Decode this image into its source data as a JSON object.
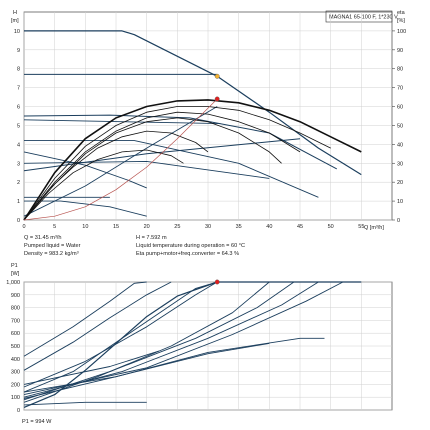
{
  "chart_data": [
    {
      "type": "line",
      "title": "MAGNA1 65-100 F, 1*230 V",
      "ylabel_top": "H",
      "ylabel_unit": "[m]",
      "y2label_top": "eta",
      "y2label_unit": "[%]",
      "xlabel": "Q [m³/h]",
      "xlim": [
        0,
        60
      ],
      "ylim": [
        0,
        11
      ],
      "y2lim": [
        0,
        110
      ],
      "x_ticks": [
        0,
        5,
        10,
        15,
        20,
        25,
        30,
        35,
        40,
        45,
        50,
        55
      ],
      "y_ticks": [
        0,
        1,
        2,
        3,
        4,
        5,
        6,
        7,
        8,
        9,
        10
      ],
      "y2_ticks": [
        0,
        10,
        20,
        30,
        40,
        50,
        60,
        70,
        80,
        90,
        100
      ],
      "grid": true,
      "series": [
        {
          "color": "#1c3f5e",
          "width": 1.2,
          "points": [
            [
              0,
              10
            ],
            [
              16,
              10
            ],
            [
              18,
              9.8
            ],
            [
              31.5,
              7.6
            ]
          ]
        },
        {
          "color": "#1c3f5e",
          "width": 1.2,
          "points": [
            [
              31.5,
              7.6
            ],
            [
              40,
              5.7
            ],
            [
              48,
              3.8
            ],
            [
              55,
              2.4
            ]
          ]
        },
        {
          "color": "#1c3f5e",
          "width": 1.0,
          "points": [
            [
              0,
              7.7
            ],
            [
              31.5,
              7.7
            ]
          ]
        },
        {
          "color": "#1c3f5e",
          "width": 1.0,
          "points": [
            [
              0,
              5.5
            ],
            [
              14,
              5.55
            ],
            [
              27,
              5.4
            ],
            [
              40,
              4.6
            ],
            [
              51,
              2.7
            ]
          ]
        },
        {
          "color": "#1c3f5e",
          "width": 1.0,
          "points": [
            [
              0,
              2.6
            ],
            [
              20,
              3.5
            ],
            [
              45,
              4.3
            ]
          ]
        },
        {
          "color": "#1c3f5e",
          "width": 0.9,
          "points": [
            [
              0,
              1.0
            ],
            [
              6,
              1.0
            ],
            [
              14,
              0.7
            ],
            [
              20,
              0.2
            ]
          ]
        },
        {
          "color": "#1c3f5e",
          "width": 0.9,
          "points": [
            [
              0,
              3.6
            ],
            [
              10,
              2.9
            ],
            [
              17,
              2.1
            ],
            [
              20,
              1.7
            ]
          ]
        },
        {
          "color": "#1c3f5e",
          "width": 0.9,
          "points": [
            [
              0,
              4.2
            ],
            [
              18,
              4.2
            ],
            [
              35,
              3.0
            ],
            [
              48,
              1.2
            ]
          ]
        },
        {
          "color": "#1c3f5e",
          "width": 0.9,
          "points": [
            [
              0,
              1.2
            ],
            [
              14,
              1.2
            ]
          ]
        },
        {
          "color": "#1c3f5e",
          "width": 0.9,
          "points": [
            [
              0,
              5.3
            ],
            [
              32,
              5.1
            ]
          ]
        },
        {
          "color": "#1c3f5e",
          "width": 0.9,
          "points": [
            [
              0,
              0.2
            ],
            [
              10,
              1.8
            ],
            [
              20,
              3.8
            ],
            [
              31.5,
              6.0
            ]
          ]
        },
        {
          "color": "#1c3f5e",
          "width": 0.9,
          "points": [
            [
              0,
              3.0
            ],
            [
              20,
              3.1
            ],
            [
              40,
              2.2
            ]
          ]
        },
        {
          "color": "#111111",
          "width": 1.6,
          "points": [
            [
              0,
              0
            ],
            [
              5,
              2.5
            ],
            [
              10,
              4.3
            ],
            [
              15,
              5.4
            ],
            [
              20,
              6.0
            ],
            [
              25,
              6.3
            ],
            [
              30,
              6.35
            ],
            [
              35,
              6.2
            ],
            [
              40,
              5.8
            ],
            [
              45,
              5.2
            ],
            [
              50,
              4.4
            ],
            [
              55,
              3.6
            ]
          ]
        },
        {
          "color": "#111111",
          "width": 0.8,
          "points": [
            [
              0,
              0
            ],
            [
              5,
              2.2
            ],
            [
              10,
              3.9
            ],
            [
              15,
              5.0
            ],
            [
              20,
              5.7
            ],
            [
              25,
              6.0
            ],
            [
              30,
              6.0
            ],
            [
              35,
              5.8
            ],
            [
              40,
              5.3
            ],
            [
              45,
              4.6
            ],
            [
              50,
              3.8
            ]
          ]
        },
        {
          "color": "#111111",
          "width": 0.8,
          "points": [
            [
              0,
              0
            ],
            [
              5,
              2.0
            ],
            [
              10,
              3.6
            ],
            [
              15,
              4.7
            ],
            [
              20,
              5.4
            ],
            [
              25,
              5.7
            ],
            [
              30,
              5.6
            ],
            [
              35,
              5.2
            ],
            [
              40,
              4.6
            ],
            [
              45,
              3.6
            ]
          ]
        },
        {
          "color": "#111111",
          "width": 0.8,
          "points": [
            [
              0,
              0
            ],
            [
              5,
              1.9
            ],
            [
              10,
              3.5
            ],
            [
              15,
              4.6
            ],
            [
              20,
              5.2
            ],
            [
              25,
              5.4
            ],
            [
              30,
              5.2
            ],
            [
              35,
              4.6
            ],
            [
              40,
              3.6
            ],
            [
              42,
              3.0
            ]
          ]
        },
        {
          "color": "#111111",
          "width": 0.8,
          "points": [
            [
              0,
              0
            ],
            [
              4,
              1.6
            ],
            [
              8,
              2.8
            ],
            [
              12,
              3.8
            ],
            [
              16,
              4.4
            ],
            [
              20,
              4.7
            ],
            [
              24,
              4.6
            ],
            [
              28,
              4.1
            ],
            [
              30,
              3.6
            ]
          ]
        },
        {
          "color": "#111111",
          "width": 0.8,
          "points": [
            [
              0,
              0
            ],
            [
              4,
              1.4
            ],
            [
              8,
              2.5
            ],
            [
              12,
              3.2
            ],
            [
              16,
              3.6
            ],
            [
              20,
              3.7
            ],
            [
              24,
              3.4
            ],
            [
              26,
              3.0
            ]
          ]
        },
        {
          "color": "#b85450",
          "width": 0.7,
          "points": [
            [
              0,
              0
            ],
            [
              5,
              0.2
            ],
            [
              10,
              0.7
            ],
            [
              15,
              1.6
            ],
            [
              20,
              2.8
            ],
            [
              25,
              4.3
            ],
            [
              31.5,
              6.4
            ]
          ]
        }
      ],
      "markers": [
        {
          "x": 31.5,
          "y": 7.6,
          "color": "#f2b233"
        },
        {
          "x": 31.5,
          "y": 6.4,
          "color": "#e02020"
        }
      ],
      "info_left": [
        "Q = 31.45 m³/h",
        "Pumped liquid = Water",
        "Density = 983.2 kg/m³"
      ],
      "info_right": [
        "H = 7.592 m",
        "Liquid temperature during operation = 60 °C",
        "Eta pump+motor+freq.converter = 64.3 %"
      ]
    },
    {
      "type": "line",
      "ylabel_top": "P1",
      "ylabel_unit": "[W]",
      "xlim": [
        0,
        60
      ],
      "ylim": [
        0,
        1000
      ],
      "y_ticks": [
        0,
        100,
        200,
        300,
        400,
        500,
        600,
        700,
        800,
        900,
        "1,000"
      ],
      "grid": true,
      "series": [
        {
          "color": "#1c3f5e",
          "width": 1.2,
          "points": [
            [
              0,
              20
            ],
            [
              5,
              120
            ],
            [
              10,
              310
            ],
            [
              15,
              520
            ],
            [
              20,
              730
            ],
            [
              25,
              890
            ],
            [
              31.5,
              1000
            ],
            [
              55,
              1000
            ]
          ]
        },
        {
          "color": "#1c3f5e",
          "width": 0.9,
          "points": [
            [
              0,
              140
            ],
            [
              8,
              300
            ],
            [
              16,
              560
            ],
            [
              24,
              820
            ],
            [
              28,
              950
            ],
            [
              31.5,
              1000
            ]
          ]
        },
        {
          "color": "#1c3f5e",
          "width": 0.9,
          "points": [
            [
              0,
              180
            ],
            [
              10,
              380
            ],
            [
              20,
              650
            ],
            [
              28,
              900
            ],
            [
              31.5,
              1000
            ]
          ]
        },
        {
          "color": "#1c3f5e",
          "width": 0.9,
          "points": [
            [
              0,
              420
            ],
            [
              8,
              650
            ],
            [
              14,
              850
            ],
            [
              18,
              990
            ],
            [
              20,
              1000
            ]
          ]
        },
        {
          "color": "#1c3f5e",
          "width": 0.9,
          "points": [
            [
              0,
              310
            ],
            [
              8,
              530
            ],
            [
              14,
              720
            ],
            [
              20,
              900
            ],
            [
              24,
              1000
            ]
          ]
        },
        {
          "color": "#1c3f5e",
          "width": 0.9,
          "points": [
            [
              0,
              60
            ],
            [
              12,
              260
            ],
            [
              24,
              500
            ],
            [
              34,
              760
            ],
            [
              40,
              1000
            ]
          ]
        },
        {
          "color": "#1c3f5e",
          "width": 0.9,
          "points": [
            [
              0,
              80
            ],
            [
              14,
              300
            ],
            [
              28,
              560
            ],
            [
              38,
              800
            ],
            [
              44,
              1000
            ]
          ]
        },
        {
          "color": "#1c3f5e",
          "width": 0.9,
          "points": [
            [
              0,
              100
            ],
            [
              16,
              300
            ],
            [
              30,
              560
            ],
            [
              42,
              820
            ],
            [
              48,
              1000
            ]
          ]
        },
        {
          "color": "#1c3f5e",
          "width": 0.9,
          "points": [
            [
              0,
              120
            ],
            [
              20,
              330
            ],
            [
              34,
              590
            ],
            [
              46,
              850
            ],
            [
              52,
              1000
            ]
          ]
        },
        {
          "color": "#1c3f5e",
          "width": 0.9,
          "points": [
            [
              0,
              90
            ],
            [
              15,
              260
            ],
            [
              30,
              450
            ],
            [
              45,
              560
            ],
            [
              49,
              560
            ]
          ]
        },
        {
          "color": "#1c3f5e",
          "width": 0.9,
          "points": [
            [
              0,
              140
            ],
            [
              15,
              260
            ],
            [
              30,
              440
            ],
            [
              40,
              520
            ]
          ]
        },
        {
          "color": "#1c3f5e",
          "width": 0.9,
          "points": [
            [
              0,
              40
            ],
            [
              10,
              60
            ],
            [
              20,
              60
            ]
          ]
        },
        {
          "color": "#1c3f5e",
          "width": 0.9,
          "points": [
            [
              0,
              200
            ],
            [
              14,
              340
            ],
            [
              22,
              460
            ]
          ]
        }
      ],
      "markers": [
        {
          "x": 31.5,
          "y": 1000,
          "color": "#e02020"
        }
      ],
      "info_left": [
        "P1 = 994 W"
      ]
    }
  ]
}
